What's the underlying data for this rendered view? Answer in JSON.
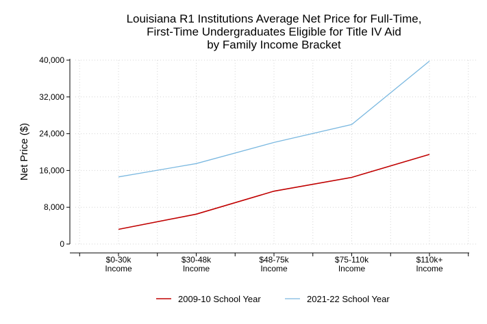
{
  "chart_data": {
    "type": "line",
    "title_lines": [
      "Louisiana R1 Institutions Average Net Price for Full-Time,",
      "First-Time Undergraduates Eligible for Title IV Aid",
      "by Family Income Bracket"
    ],
    "ylabel": "Net Price ($)",
    "xlabel": "",
    "categories": [
      [
        "$0-30k",
        "Income"
      ],
      [
        "$30-48k",
        "Income"
      ],
      [
        "$48-75k",
        "Income"
      ],
      [
        "$75-110k",
        "Income"
      ],
      [
        "$110k+",
        "Income"
      ]
    ],
    "yticks": [
      0,
      8000,
      16000,
      24000,
      32000,
      40000
    ],
    "ytick_labels": [
      "0",
      "8,000",
      "16,000",
      "24,000",
      "32,000",
      "40,000"
    ],
    "ylim": [
      0,
      40000
    ],
    "grid": true,
    "legend_position": "bottom",
    "series": [
      {
        "name": "2009-10 School Year",
        "color": "#c00000",
        "values": [
          3200,
          6500,
          11500,
          14500,
          19500
        ]
      },
      {
        "name": "2021-22 School Year",
        "color": "#7ab8e0",
        "values": [
          14600,
          17500,
          22100,
          26000,
          39800
        ]
      }
    ]
  }
}
